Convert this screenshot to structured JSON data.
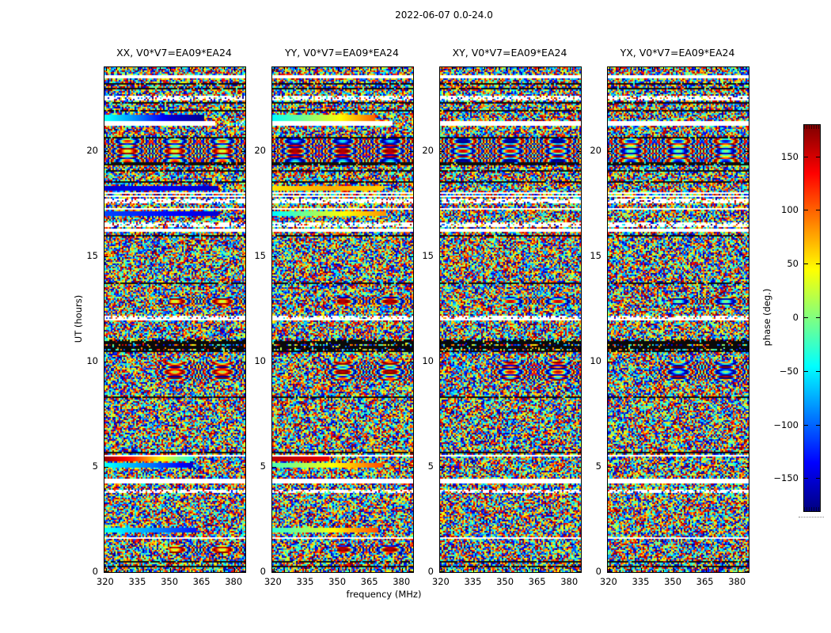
{
  "figure": {
    "title": "2022-06-07 0.0-24.0"
  },
  "axes": {
    "x_label": "frequency (MHz)",
    "y_label": "UT (hours)",
    "x_ticks": [
      {
        "value": 320,
        "label": "320"
      },
      {
        "value": 335,
        "label": "335"
      },
      {
        "value": 350,
        "label": "350"
      },
      {
        "value": 365,
        "label": "365"
      },
      {
        "value": 380,
        "label": "380"
      }
    ],
    "x_minor_step": 5,
    "x_range": [
      319.3,
      385.1
    ],
    "y_ticks": [
      {
        "value": 0,
        "label": "0"
      },
      {
        "value": 5,
        "label": "5"
      },
      {
        "value": 10,
        "label": "10"
      },
      {
        "value": 15,
        "label": "15"
      },
      {
        "value": 20,
        "label": "20"
      }
    ],
    "y_range": [
      0,
      24
    ]
  },
  "colorbar": {
    "label": "phase (deg.)",
    "range": [
      -180,
      180
    ],
    "ticks": [
      {
        "value": 150,
        "label": "150"
      },
      {
        "value": 100,
        "label": "100"
      },
      {
        "value": 50,
        "label": "50"
      },
      {
        "value": 0,
        "label": "0"
      },
      {
        "value": -50,
        "label": "−50"
      },
      {
        "value": -100,
        "label": "−100"
      },
      {
        "value": -150,
        "label": "−150"
      }
    ],
    "colormap": "jet",
    "stops": [
      [
        0.0,
        "#00007f"
      ],
      [
        0.125,
        "#0000ff"
      ],
      [
        0.375,
        "#00ffff"
      ],
      [
        0.5,
        "#80ff80"
      ],
      [
        0.625,
        "#ffff00"
      ],
      [
        0.875,
        "#ff0000"
      ],
      [
        1.0,
        "#800000"
      ]
    ]
  },
  "chart_data": {
    "type": "heatmap",
    "title": "2022-06-07 0.0-24.0",
    "panels": [
      {
        "label": "XX, V0*V7=EA09*EA24",
        "pol": "XX",
        "seed": 7
      },
      {
        "label": "YY, V0*V7=EA09*EA24",
        "pol": "YY",
        "seed": 11
      },
      {
        "label": "XY, V0*V7=EA09*EA24",
        "pol": "XY",
        "seed": 23
      },
      {
        "label": "YX, V0*V7=EA09*EA24",
        "pol": "YX",
        "seed": 31
      }
    ],
    "x": {
      "label": "frequency (MHz)",
      "units": "MHz",
      "range": [
        319.3,
        385.1
      ]
    },
    "y": {
      "label": "UT (hours)",
      "units": "hours",
      "range": [
        0,
        24
      ]
    },
    "z": {
      "label": "phase (deg.)",
      "units": "deg",
      "range": [
        -180,
        180
      ]
    },
    "content": "uniform random interferometric phase noise with horizontal feature bands",
    "bands": [
      {
        "kind": "white",
        "ut": 23.55,
        "h": 0.1
      },
      {
        "kind": "black",
        "ut": 23.2,
        "h": 0.06
      },
      {
        "kind": "black",
        "ut": 22.95,
        "h": 0.08
      },
      {
        "kind": "sparse",
        "ut": 22.55,
        "h": 0.22
      },
      {
        "kind": "black",
        "ut": 22.3,
        "h": 0.06
      },
      {
        "kind": "black",
        "ut": 21.95,
        "h": 0.07
      },
      {
        "kind": "smooth",
        "ut": 21.62,
        "h": 0.3,
        "panels": [
          {
            "stops": [
              -40,
              -90,
              -150,
              -175
            ],
            "noise_from": 0.7
          },
          {
            "stops": [
              -45,
              0,
              45,
              100
            ],
            "noise_from": 0.72
          },
          null,
          null
        ]
      },
      {
        "kind": "white",
        "ut": 21.32,
        "h": 0.26,
        "tail_from": [
          0.78,
          0.85,
          null,
          null
        ]
      },
      {
        "kind": "black",
        "ut": 20.68,
        "h": 0.07
      },
      {
        "kind": "swirl",
        "ut": 20.05,
        "h": 1.15,
        "x_from": 0.0,
        "panels": [
          0,
          1,
          2,
          3
        ]
      },
      {
        "kind": "black",
        "ut": 19.42,
        "h": 0.1
      },
      {
        "kind": "black",
        "ut": 19.05,
        "h": 0.06
      },
      {
        "kind": "black",
        "ut": 18.55,
        "h": 0.06
      },
      {
        "kind": "smooth",
        "ut": 18.25,
        "h": 0.2,
        "panels": [
          {
            "stops": [
              -150,
              -135,
              -155
            ],
            "noise_from": 0.8
          },
          {
            "stops": [
              55,
              75,
              60
            ],
            "noise_from": 0.78
          },
          null,
          null
        ]
      },
      {
        "kind": "white",
        "ut": 18.02,
        "h": 0.08
      },
      {
        "kind": "white",
        "ut": 17.88,
        "h": 0.08
      },
      {
        "kind": "sparse",
        "ut": 17.65,
        "h": 0.25
      },
      {
        "kind": "white",
        "ut": 17.25,
        "h": 0.06
      },
      {
        "kind": "smooth",
        "ut": 17.05,
        "h": 0.18,
        "panels": [
          {
            "stops": [
              -110,
              -150
            ],
            "noise_from": 0.8
          },
          {
            "stops": [
              -50,
              30,
              85
            ],
            "noise_from": 0.8
          },
          null,
          null
        ]
      },
      {
        "kind": "sparse",
        "ut": 16.5,
        "h": 0.22
      },
      {
        "kind": "white",
        "ut": 16.22,
        "h": 0.14
      },
      {
        "kind": "black",
        "ut": 16.02,
        "h": 0.06
      },
      {
        "kind": "black",
        "ut": 13.72,
        "h": 0.06
      },
      {
        "kind": "swirl",
        "ut": 12.9,
        "h": 0.4,
        "x_from": 0.45,
        "panels": [
          0,
          1,
          2,
          3
        ]
      },
      {
        "kind": "sparse",
        "ut": 12.15,
        "h": 0.15
      },
      {
        "kind": "white",
        "ut": 12.0,
        "h": 0.07
      },
      {
        "kind": "dark",
        "ut": 10.75,
        "h": 0.55
      },
      {
        "kind": "swirl",
        "ut": 9.55,
        "h": 0.9,
        "x_from": 0.35,
        "panels": [
          0,
          1,
          2,
          3
        ]
      },
      {
        "kind": "black",
        "ut": 8.32,
        "h": 0.06
      },
      {
        "kind": "black",
        "ut": 5.65,
        "h": 0.08
      },
      {
        "kind": "white",
        "ut": 5.5,
        "h": 0.08
      },
      {
        "kind": "smooth",
        "ut": 5.35,
        "h": 0.24,
        "panels": [
          {
            "stops": [
              170,
              120,
              40,
              -40
            ],
            "noise_from": 0.62
          },
          {
            "stops": [
              160,
              150,
              140
            ],
            "noise_from": 0.4
          },
          null,
          null
        ]
      },
      {
        "kind": "smooth",
        "ut": 5.08,
        "h": 0.22,
        "panels": [
          {
            "stops": [
              -40,
              -90,
              -150
            ],
            "noise_from": 0.62
          },
          {
            "stops": [
              -20,
              20,
              60,
              110
            ],
            "noise_from": 0.78
          },
          null,
          null
        ]
      },
      {
        "kind": "white",
        "ut": 4.32,
        "h": 0.2
      },
      {
        "kind": "sparse",
        "ut": 3.85,
        "h": 0.15
      },
      {
        "kind": "smooth",
        "ut": 1.98,
        "h": 0.18,
        "panels": [
          {
            "stops": [
              -40,
              -80,
              -130
            ],
            "noise_from": 0.65
          },
          {
            "stops": [
              -30,
              10,
              60,
              110
            ],
            "noise_from": 0.75
          },
          null,
          null
        ]
      },
      {
        "kind": "white",
        "ut": 1.63,
        "h": 0.12
      },
      {
        "kind": "swirl",
        "ut": 1.1,
        "h": 0.4,
        "x_from": 0.45,
        "panels": [
          0,
          1
        ]
      },
      {
        "kind": "black",
        "ut": 0.52,
        "h": 0.06
      },
      {
        "kind": "black",
        "ut": 0.3,
        "h": 0.06
      }
    ]
  }
}
